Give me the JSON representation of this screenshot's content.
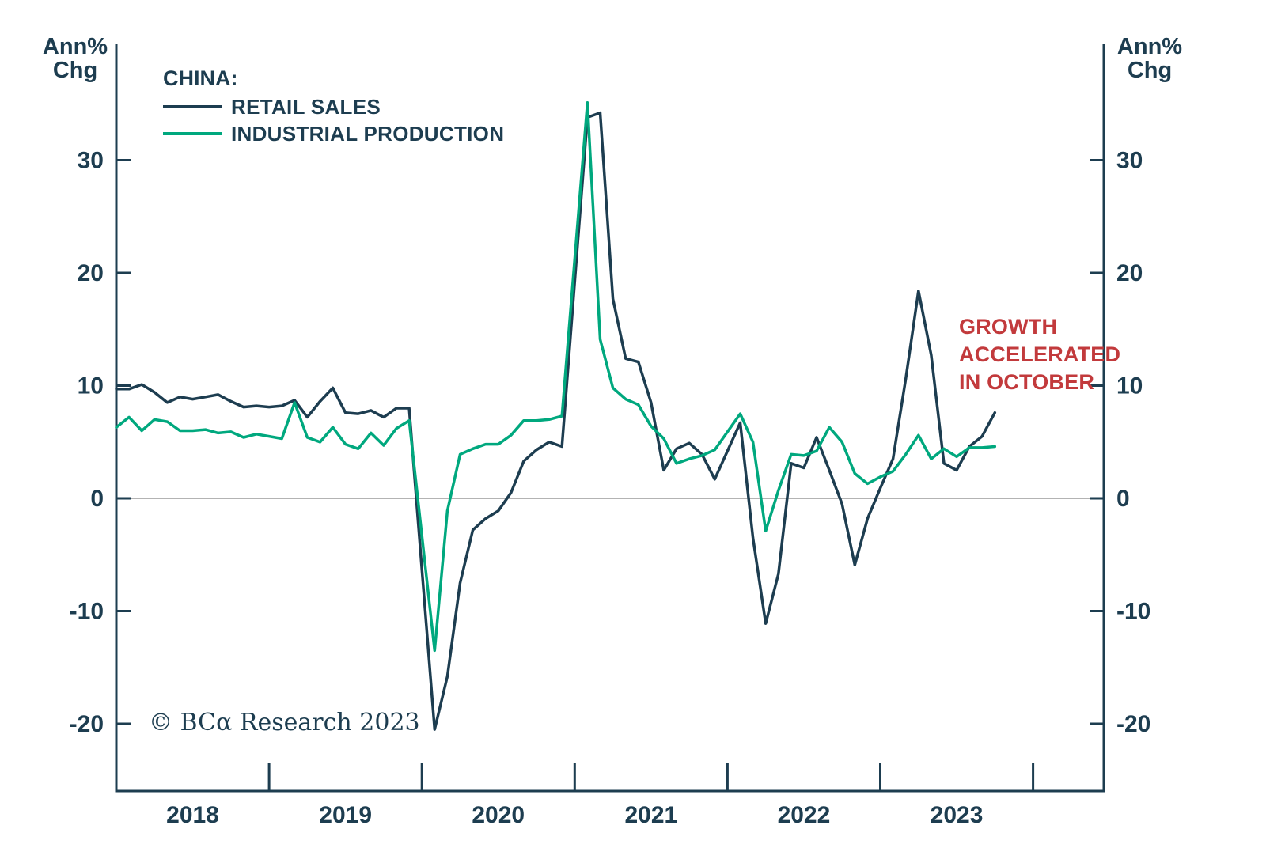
{
  "y_axis_unit": {
    "left": "Ann%\nChg",
    "right": "Ann%\nChg"
  },
  "legend": {
    "title": "CHINA:",
    "items": [
      {
        "label": "RETAIL SALES",
        "color": "#1d3d50"
      },
      {
        "label": "INDUSTRIAL PRODUCTION",
        "color": "#00a87e"
      }
    ]
  },
  "annotation": {
    "text": "GROWTH ACCELERATED IN OCTOBER",
    "color": "#c23a3c"
  },
  "copyright": "© BCα Research 2023",
  "chart_data": {
    "type": "line",
    "frequency": "monthly",
    "x_range": [
      "2018-01",
      "2023-10"
    ],
    "xtick_years": [
      "2018",
      "2019",
      "2020",
      "2021",
      "2022",
      "2023"
    ],
    "yticks": [
      30,
      20,
      10,
      0,
      -10,
      -20
    ],
    "ylim": [
      -26,
      40
    ],
    "ylabel": "Ann% Chg",
    "grid": "zero-line-only",
    "legend_position": "top-left",
    "axis_color": "#1d3d50",
    "text_color": "#1d3d50",
    "zero_line_color": "#9a9a9a",
    "series": [
      {
        "name": "RETAIL SALES",
        "color": "#1d3d50",
        "values": [
          9.7,
          9.7,
          10.1,
          9.4,
          8.5,
          9.0,
          8.8,
          9.0,
          9.2,
          8.6,
          8.1,
          8.2,
          8.1,
          8.2,
          8.7,
          7.2,
          8.6,
          9.8,
          7.6,
          7.5,
          7.8,
          7.2,
          8.0,
          8.0,
          -6.3,
          -20.5,
          -15.8,
          -7.5,
          -2.8,
          -1.8,
          -1.1,
          0.5,
          3.3,
          4.3,
          5.0,
          4.6,
          19.2,
          33.8,
          34.2,
          17.7,
          12.4,
          12.1,
          8.5,
          2.5,
          4.4,
          4.9,
          3.9,
          1.7,
          4.2,
          6.7,
          -3.5,
          -11.1,
          -6.7,
          3.1,
          2.7,
          5.4,
          2.5,
          -0.5,
          -5.9,
          -1.8,
          0.9,
          3.5,
          10.6,
          18.4,
          12.7,
          3.1,
          2.5,
          4.6,
          5.5,
          7.6
        ]
      },
      {
        "name": "INDUSTRIAL PRODUCTION",
        "color": "#00a87e",
        "values": [
          6.3,
          7.2,
          6.0,
          7.0,
          6.8,
          6.0,
          6.0,
          6.1,
          5.8,
          5.9,
          5.4,
          5.7,
          5.5,
          5.3,
          8.5,
          5.4,
          5.0,
          6.3,
          4.8,
          4.4,
          5.8,
          4.7,
          6.2,
          6.9,
          -3.3,
          -13.5,
          -1.1,
          3.9,
          4.4,
          4.8,
          4.8,
          5.6,
          6.9,
          6.9,
          7.0,
          7.3,
          21.2,
          35.1,
          14.1,
          9.8,
          8.8,
          8.3,
          6.4,
          5.3,
          3.1,
          3.5,
          3.8,
          4.3,
          5.9,
          7.5,
          5.0,
          -2.9,
          0.7,
          3.9,
          3.8,
          4.2,
          6.3,
          5.0,
          2.2,
          1.3,
          1.9,
          2.4,
          3.9,
          5.6,
          3.5,
          4.4,
          3.7,
          4.5,
          4.5,
          4.6
        ]
      }
    ]
  }
}
